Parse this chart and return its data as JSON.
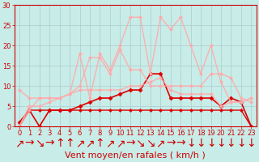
{
  "xlabel": "Vent moyen/en rafales ( km/h )",
  "background_color": "#c8ece8",
  "grid_color": "#aacccc",
  "xlim": [
    -0.5,
    23.5
  ],
  "ylim": [
    0,
    30
  ],
  "yticks": [
    0,
    5,
    10,
    15,
    20,
    25,
    30
  ],
  "xticks": [
    0,
    1,
    2,
    3,
    4,
    5,
    6,
    7,
    8,
    9,
    10,
    11,
    12,
    13,
    14,
    15,
    16,
    17,
    18,
    19,
    20,
    21,
    22,
    23
  ],
  "series": [
    {
      "x": [
        0,
        1,
        2,
        3,
        4,
        5,
        6,
        7,
        8,
        9,
        10,
        11,
        12,
        13,
        14,
        15,
        16,
        17,
        18,
        19,
        20,
        21,
        22,
        23
      ],
      "y": [
        0,
        4,
        4,
        4,
        4,
        4,
        4,
        4,
        4,
        4,
        4,
        4,
        4,
        4,
        4,
        4,
        4,
        4,
        4,
        4,
        4,
        4,
        4,
        0
      ],
      "color": "#dd0000",
      "linewidth": 1.0,
      "marker": "D",
      "markersize": 2,
      "alpha": 1.0
    },
    {
      "x": [
        0,
        1,
        2,
        3,
        4,
        5,
        6,
        7,
        8,
        9,
        10,
        11,
        12,
        13,
        14,
        15,
        16,
        17,
        18,
        19,
        20,
        21,
        22,
        23
      ],
      "y": [
        1,
        4,
        0,
        4,
        4,
        4,
        5,
        6,
        7,
        7,
        8,
        9,
        9,
        13,
        13,
        7,
        7,
        7,
        7,
        7,
        5,
        7,
        6,
        0
      ],
      "color": "#dd0000",
      "linewidth": 1.2,
      "marker": "D",
      "markersize": 2.5,
      "alpha": 1.0
    },
    {
      "x": [
        0,
        1,
        2,
        3,
        4,
        5,
        6,
        7,
        8,
        9,
        10,
        11,
        12,
        13,
        14,
        15,
        16,
        17,
        18,
        19,
        20,
        21,
        22,
        23
      ],
      "y": [
        0,
        4,
        7,
        7,
        7,
        8,
        18,
        7,
        18,
        14,
        20,
        27,
        27,
        13,
        27,
        24,
        27,
        20,
        13,
        20,
        11,
        6,
        6,
        7
      ],
      "color": "#ffaaaa",
      "linewidth": 1.0,
      "marker": "D",
      "markersize": 2,
      "alpha": 0.9
    },
    {
      "x": [
        0,
        1,
        2,
        3,
        4,
        5,
        6,
        7,
        8,
        9,
        10,
        11,
        12,
        13,
        14,
        15,
        16,
        17,
        18,
        19,
        20,
        21,
        22,
        23
      ],
      "y": [
        9,
        7,
        7,
        7,
        7,
        8,
        10,
        17,
        17,
        13,
        19,
        14,
        14,
        10,
        10,
        10,
        10,
        10,
        10,
        13,
        13,
        12,
        7,
        6
      ],
      "color": "#ffaaaa",
      "linewidth": 1.0,
      "marker": "D",
      "markersize": 2,
      "alpha": 0.9
    },
    {
      "x": [
        0,
        1,
        2,
        3,
        4,
        5,
        6,
        7,
        8,
        9,
        10,
        11,
        12,
        13,
        14,
        15,
        16,
        17,
        18,
        19,
        20,
        21,
        22,
        23
      ],
      "y": [
        0,
        5,
        5,
        6,
        7,
        8,
        9,
        9,
        9,
        9,
        9,
        10,
        10,
        11,
        12,
        9,
        8,
        8,
        8,
        8,
        5,
        6,
        6,
        7
      ],
      "color": "#ffaaaa",
      "linewidth": 1.0,
      "marker": "D",
      "markersize": 2,
      "alpha": 0.9
    }
  ],
  "arrows": [
    "↗",
    "→",
    "↘",
    "→",
    "↑",
    "↑",
    "↗",
    "↗",
    "↑",
    "↗",
    "↗",
    "→",
    "↘",
    "↘",
    "↗",
    "→",
    "→",
    "↓",
    "↓",
    "↓",
    "↓",
    "↓",
    "↓",
    "↓"
  ],
  "xlabel_fontsize": 8,
  "tick_fontsize": 6
}
